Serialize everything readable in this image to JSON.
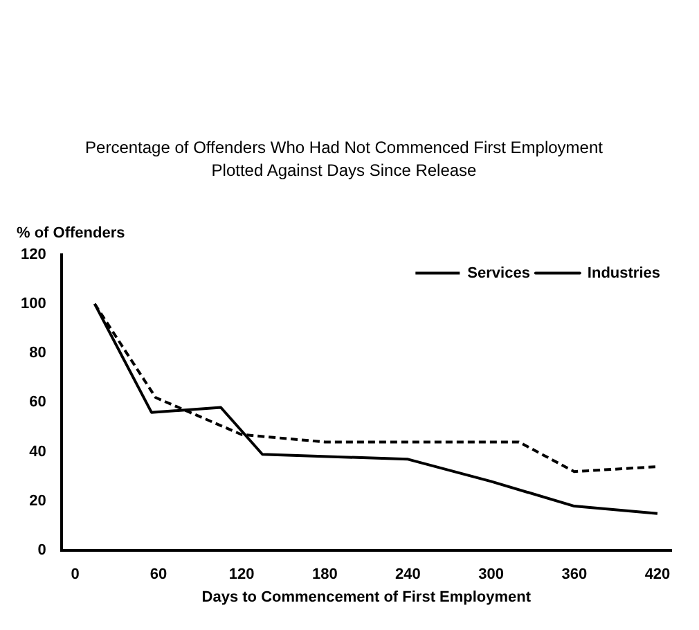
{
  "chart_data": {
    "type": "line",
    "title": "Percentage of Offenders Who Had Not Commenced First Employment",
    "subtitle": "Plotted Against Days Since Release",
    "xlabel": "Days to Commencement of First Employment",
    "ylabel": "% of Offenders",
    "series": [
      {
        "name": "Services",
        "color": "#000000",
        "line_style": "dashed",
        "x": [
          14,
          58,
          120,
          180,
          320,
          360,
          420
        ],
        "values": [
          100,
          62,
          47,
          44,
          44,
          32,
          34
        ]
      },
      {
        "name": "Industries",
        "color": "#000000",
        "line_style": "solid",
        "x": [
          14,
          55,
          105,
          135,
          240,
          300,
          360,
          420
        ],
        "values": [
          100,
          56,
          58,
          39,
          37,
          28,
          18,
          15
        ]
      }
    ],
    "xlim": [
      -10,
      430
    ],
    "xticks": [
      0,
      60,
      120,
      180,
      240,
      300,
      360,
      420
    ],
    "ylim": [
      0,
      120
    ],
    "yticks": [
      0,
      20,
      40,
      60,
      80,
      100,
      120
    ],
    "grid": false,
    "legend": "top right",
    "marker": "none"
  }
}
